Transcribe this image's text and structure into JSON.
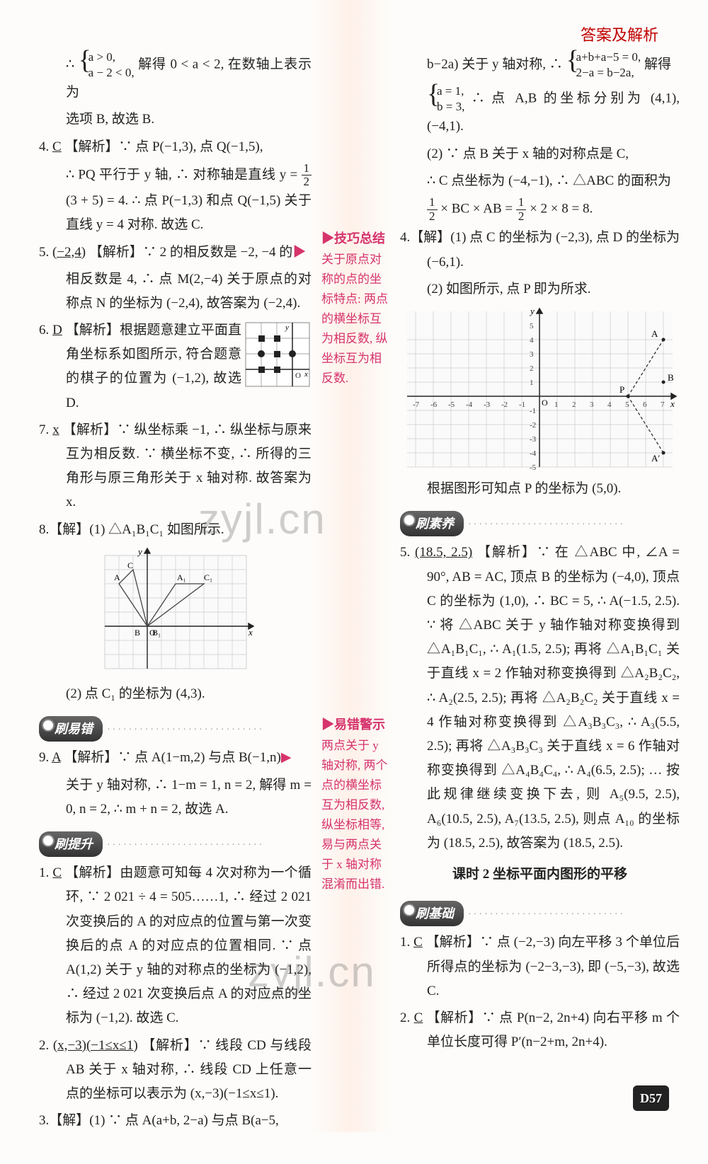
{
  "header": {
    "title": "答案及解析"
  },
  "pagenum": "D57",
  "watermark": "zyjl.cn",
  "left": {
    "p1a": "∴ ",
    "p1case1": "a > 0,",
    "p1case2": "a − 2 < 0,",
    "p1b": " 解得 0 < a < 2, 在数轴上表示为",
    "p1c": "选项 B, 故选 B.",
    "p4a": "4. ",
    "p4ans": "C",
    "p4b": "  【解析】∵ 点 P(−1,3), 点 Q(−1,5),",
    "p4c": "∴ PQ 平行于 y 轴, ∴ 对称轴是直线 y = ",
    "p4frac": "1/2",
    "p4d": "(3 + 5) = 4. ∴ 点 P(−1,3) 和点 Q(−1,5) 关于直线 y = 4 对称. 故选 C.",
    "p5a": "5. ",
    "p5ans": "(−2,4)",
    "p5b": "  【解析】∵ 2 的相反数是 −2, −4 的",
    "p5c": "相反数是 4, ∴ 点 M(2,−4) 关于原点的对称点 N 的坐标为 (−2,4), 故答案为 (−2,4).",
    "p6a": "6. ",
    "p6ans": "D",
    "p6b": "  【解析】根据题意建立平面直角坐标系如图所示, 符合题意的棋子的位置为 (−1,2), 故选 D.",
    "p7a": "7. ",
    "p7ans": "x",
    "p7b": "  【解析】∵ 纵坐标乘 −1, ∴ 纵坐标与原来互为相反数. ∵ 横坐标不变, ∴ 所得的三角形与原三角形关于 x 轴对称. 故答案为 x.",
    "p8a": "8.【解】(1) △A₁B₁C₁ 如图所示.",
    "p8b": "(2) 点 C₁ 的坐标为 (4,3).",
    "sec_easy": "刷易错",
    "p9a": "9. ",
    "p9ans": "A",
    "p9b": "  【解析】∵ 点 A(1−m,2) 与点 B(−1,n)",
    "p9c": "关于 y 轴对称, ∴ 1−m = 1, n = 2, 解得 m = 0, n = 2, ∴ m + n = 2, 故选 A.",
    "sec_up": "刷提升",
    "q1a": "1. ",
    "q1ans": "C",
    "q1b": "  【解析】由题意可知每 4 次对称为一个循环, ∵ 2 021 ÷ 4 = 505……1, ∴ 经过 2 021 次变换后的 A 的对应点的位置与第一次变换后的点 A 的对应点的位置相同. ∵ 点 A(1,2) 关于 y 轴的对称点的坐标为 (−1,2), ∴ 经过 2 021 次变换后点 A 的对应点的坐标为 (−1,2). 故选 C.",
    "q2a": "2. ",
    "q2ans": "(x,−3)(−1≤x≤1)",
    "q2b": "  【解析】∵ 线段 CD 与线段 AB 关于 x 轴对称, ∴ 线段 CD 上任意一点的坐标可以表示为 (x,−3)(−1≤x≤1).",
    "q3a": "3.【解】(1) ∵ 点 A(a+b, 2−a) 与点 B(a−5,"
  },
  "mid": {
    "tip1_label": "▶技巧总结",
    "tip1_text": "关于原点对称的点的坐标特点: 两点的横坐标互为相反数, 纵坐标互为相反数.",
    "tip2_label": "▶易错警示",
    "tip2_text": "两点关于 y 轴对称, 两个点的横坐标互为相反数, 纵坐标相等, 易与两点关于 x 轴对称混淆而出错."
  },
  "right": {
    "r1a": "b−2a) 关于 y 轴对称, ∴ ",
    "r1case1": "a+b+a−5 = 0,",
    "r1case2": "2−a = b−2a,",
    "r1b": " 解得",
    "r1case3": "a = 1,",
    "r1case4": "b = 3,",
    "r1c": " ∴ 点 A,B 的坐标分别为 (4,1), (−4,1).",
    "r1d": "(2) ∵ 点 B 关于 x 轴的对称点是 C,",
    "r1e": "∴ C 点坐标为 (−4,−1), ∴ △ABC 的面积为",
    "r1f": " × BC × AB = ",
    "r1g": " × 2 × 8 = 8.",
    "r4a": "4.【解】(1) 点 C 的坐标为 (−2,3), 点 D 的坐标为 (−6,1).",
    "r4b": "(2) 如图所示, 点 P 即为所求.",
    "r4c": "根据图形可知点 P 的坐标为 (5,0).",
    "sec_core": "刷素养",
    "r5a": "5. ",
    "r5ans": "(18.5, 2.5)",
    "r5b": "  【解析】∵ 在 △ABC 中, ∠A = 90°, AB = AC, 顶点 B 的坐标为 (−4,0), 顶点 C 的坐标为 (1,0), ∴ BC = 5, ∴ A(−1.5, 2.5). ∵ 将 △ABC 关于 y 轴作轴对称变换得到 △A₁B₁C₁, ∴ A₁(1.5, 2.5); 再将 △A₁B₁C₁ 关于直线 x = 2 作轴对称变换得到 △A₂B₂C₂, ∴ A₂(2.5, 2.5); 再将 △A₂B₂C₂ 关于直线 x = 4 作轴对称变换得到 △A₃B₃C₃, ∴ A₃(5.5, 2.5); 再将 △A₃B₃C₃ 关于直线 x = 6 作轴对称变换得到 △A₄B₄C₄, ∴ A₄(6.5, 2.5); … 按此规律继续变换下去, 则 A₅(9.5, 2.5), A₆(10.5, 2.5), A₇(13.5, 2.5), 则点 A₁₀ 的坐标为 (18.5, 2.5), 故答案为 (18.5, 2.5).",
    "lesson_title": "课时 2   坐标平面内图形的平移",
    "sec_base": "刷基础",
    "b1a": "1. ",
    "b1ans": "C",
    "b1b": "  【解析】∵ 点 (−2,−3) 向左平移 3 个单位后所得点的坐标为 (−2−3,−3), 即 (−5,−3), 故选 C.",
    "b2a": "2. ",
    "b2ans": "C",
    "b2b": "  【解析】∵ 点 P(n−2, 2n+4) 向右平移 m 个单位长度可得 P′(n−2+m, 2n+4)."
  },
  "grid6": {
    "bg": "#ffffff",
    "line": "#888",
    "dot": "#222"
  },
  "grid8": {
    "bg": "#f5f5f5",
    "line": "#bbb",
    "axis": "#222",
    "tri": "#666"
  },
  "grid_main": {
    "bg": "#f8f8f8",
    "line": "#bbb",
    "axis": "#222",
    "xticks": [
      "-7",
      "-6",
      "-5",
      "-4",
      "-3",
      "-2",
      "-1",
      "",
      "1",
      "2",
      "3",
      "4",
      "5",
      "6",
      "7"
    ],
    "yticks": [
      "-5",
      "-4",
      "-3",
      "-2",
      "-1",
      "",
      "1",
      "2",
      "3",
      "4",
      "5"
    ],
    "A": [
      7,
      4
    ],
    "B": [
      7,
      1
    ],
    "Aprime": [
      7,
      -4
    ],
    "P": [
      5,
      0
    ]
  }
}
